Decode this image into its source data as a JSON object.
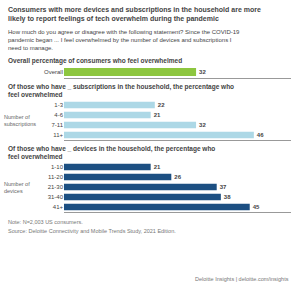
{
  "title": "Consumers with more devices and subscriptions in the household are more\nlikely to report feelings of tech overwhelm during the pandemic",
  "subtitle": "How much do you agree or disagree with the following statement? Since the COVID-19\npandemic began ... I feel overwhelmed by the number of devices and subscriptions I\nneed to manage.",
  "annotations": [
    "Note: N=2,003 US consumers.",
    "Source: Deloitte Connectivity and Mobile Trends Study, 2021 Edition.",
    "Deloitte Insights | deloitte.com/insights"
  ],
  "chart_data": [
    {
      "type": "bar",
      "orientation": "horizontal",
      "title": "Overall percentage of consumers who feel overwhelmed",
      "categories": [
        "Overall"
      ],
      "values": [
        32
      ],
      "color": "#8dc63f",
      "xlim": [
        0,
        55
      ],
      "data_labels": true,
      "tick_labels": "y",
      "grid": false
    },
    {
      "type": "bar",
      "orientation": "horizontal",
      "title": "Of those who have _ subscriptions in the household, the percentage who\nfeel overwhelmed",
      "ylabel": "Number of\nsubscriptions",
      "categories": [
        "1-3",
        "4-6",
        "7-11",
        "11+"
      ],
      "values": [
        22,
        21,
        32,
        46
      ],
      "color": "#add8e6",
      "xlim": [
        0,
        55
      ],
      "data_labels": true,
      "tick_labels": "y",
      "grid": false
    },
    {
      "type": "bar",
      "orientation": "horizontal",
      "title": "Of those who have _ devices in the household, the percentage who\nfeel overwhelmed",
      "ylabel": "Number of\ndevices",
      "categories": [
        "1-10",
        "11-20",
        "21-30",
        "31-40",
        "41+"
      ],
      "values": [
        21,
        26,
        37,
        38,
        45
      ],
      "color": "#1c4f82",
      "xlim": [
        0,
        55
      ],
      "data_labels": true,
      "tick_labels": "y",
      "grid": false
    }
  ]
}
